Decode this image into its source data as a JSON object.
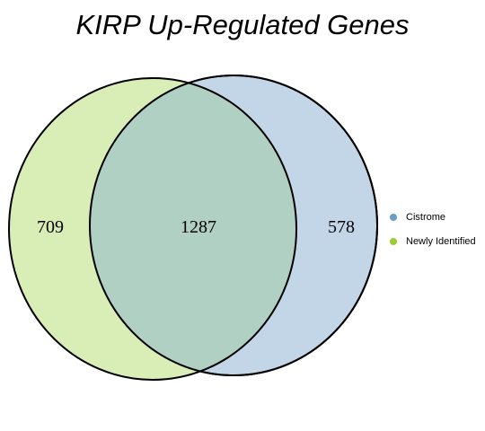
{
  "title": "KIRP Up-Regulated Genes",
  "sets": [
    {
      "name": "Newly Identified",
      "color": "#9ACD32",
      "fill": "#D9EDB6"
    },
    {
      "name": "Cistrome",
      "color": "#6A9FC7",
      "fill": "#C2D6E8"
    }
  ],
  "intersection_fill": "#B0D0C4",
  "counts": {
    "newly_identified_only": "709",
    "intersection": "1287",
    "cistrome_only": "578"
  },
  "legend": [
    {
      "label": "Cistrome",
      "color": "#6A9FC7"
    },
    {
      "label": "Newly Identified",
      "color": "#9ACD32"
    }
  ]
}
